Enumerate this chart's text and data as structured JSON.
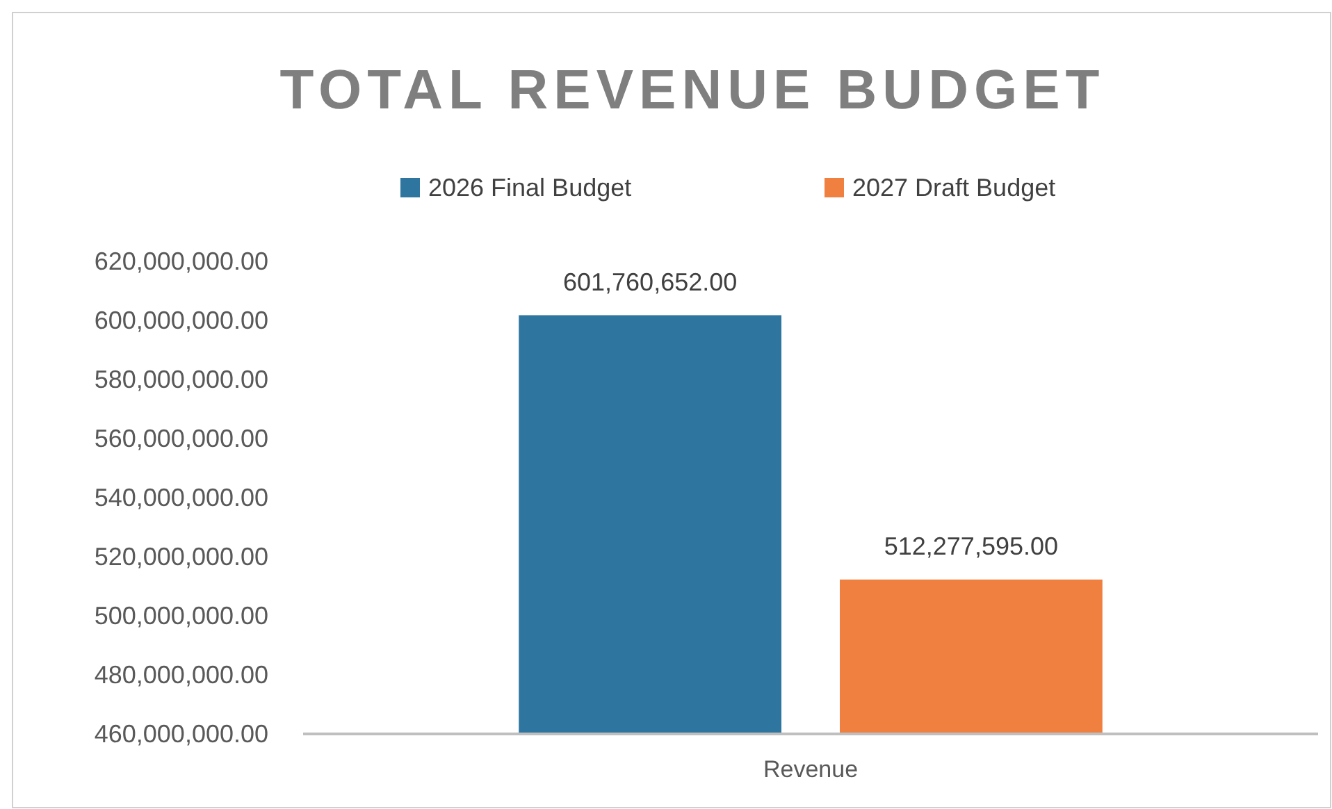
{
  "chart_data": {
    "type": "bar",
    "title": "TOTAL REVENUE BUDGET",
    "categories": [
      "Revenue"
    ],
    "series": [
      {
        "name": "2026 Final Budget",
        "color": "#2e75a0",
        "values": [
          601760652
        ]
      },
      {
        "name": "2027 Draft Budget",
        "color": "#f08040",
        "values": [
          512277595
        ]
      }
    ],
    "ylim": [
      460000000,
      620000000
    ],
    "yticks": [
      {
        "value": 460000000,
        "label": "460,000,000.00"
      },
      {
        "value": 480000000,
        "label": "480,000,000.00"
      },
      {
        "value": 500000000,
        "label": "500,000,000.00"
      },
      {
        "value": 520000000,
        "label": "520,000,000.00"
      },
      {
        "value": 540000000,
        "label": "540,000,000.00"
      },
      {
        "value": 560000000,
        "label": "560,000,000.00"
      },
      {
        "value": 580000000,
        "label": "580,000,000.00"
      },
      {
        "value": 600000000,
        "label": "600,000,000.00"
      },
      {
        "value": 620000000,
        "label": "620,000,000.00"
      }
    ],
    "value_labels": [
      [
        "601,760,652.00"
      ],
      [
        "512,277,595.00"
      ]
    ],
    "grid": false,
    "legend": "top"
  }
}
